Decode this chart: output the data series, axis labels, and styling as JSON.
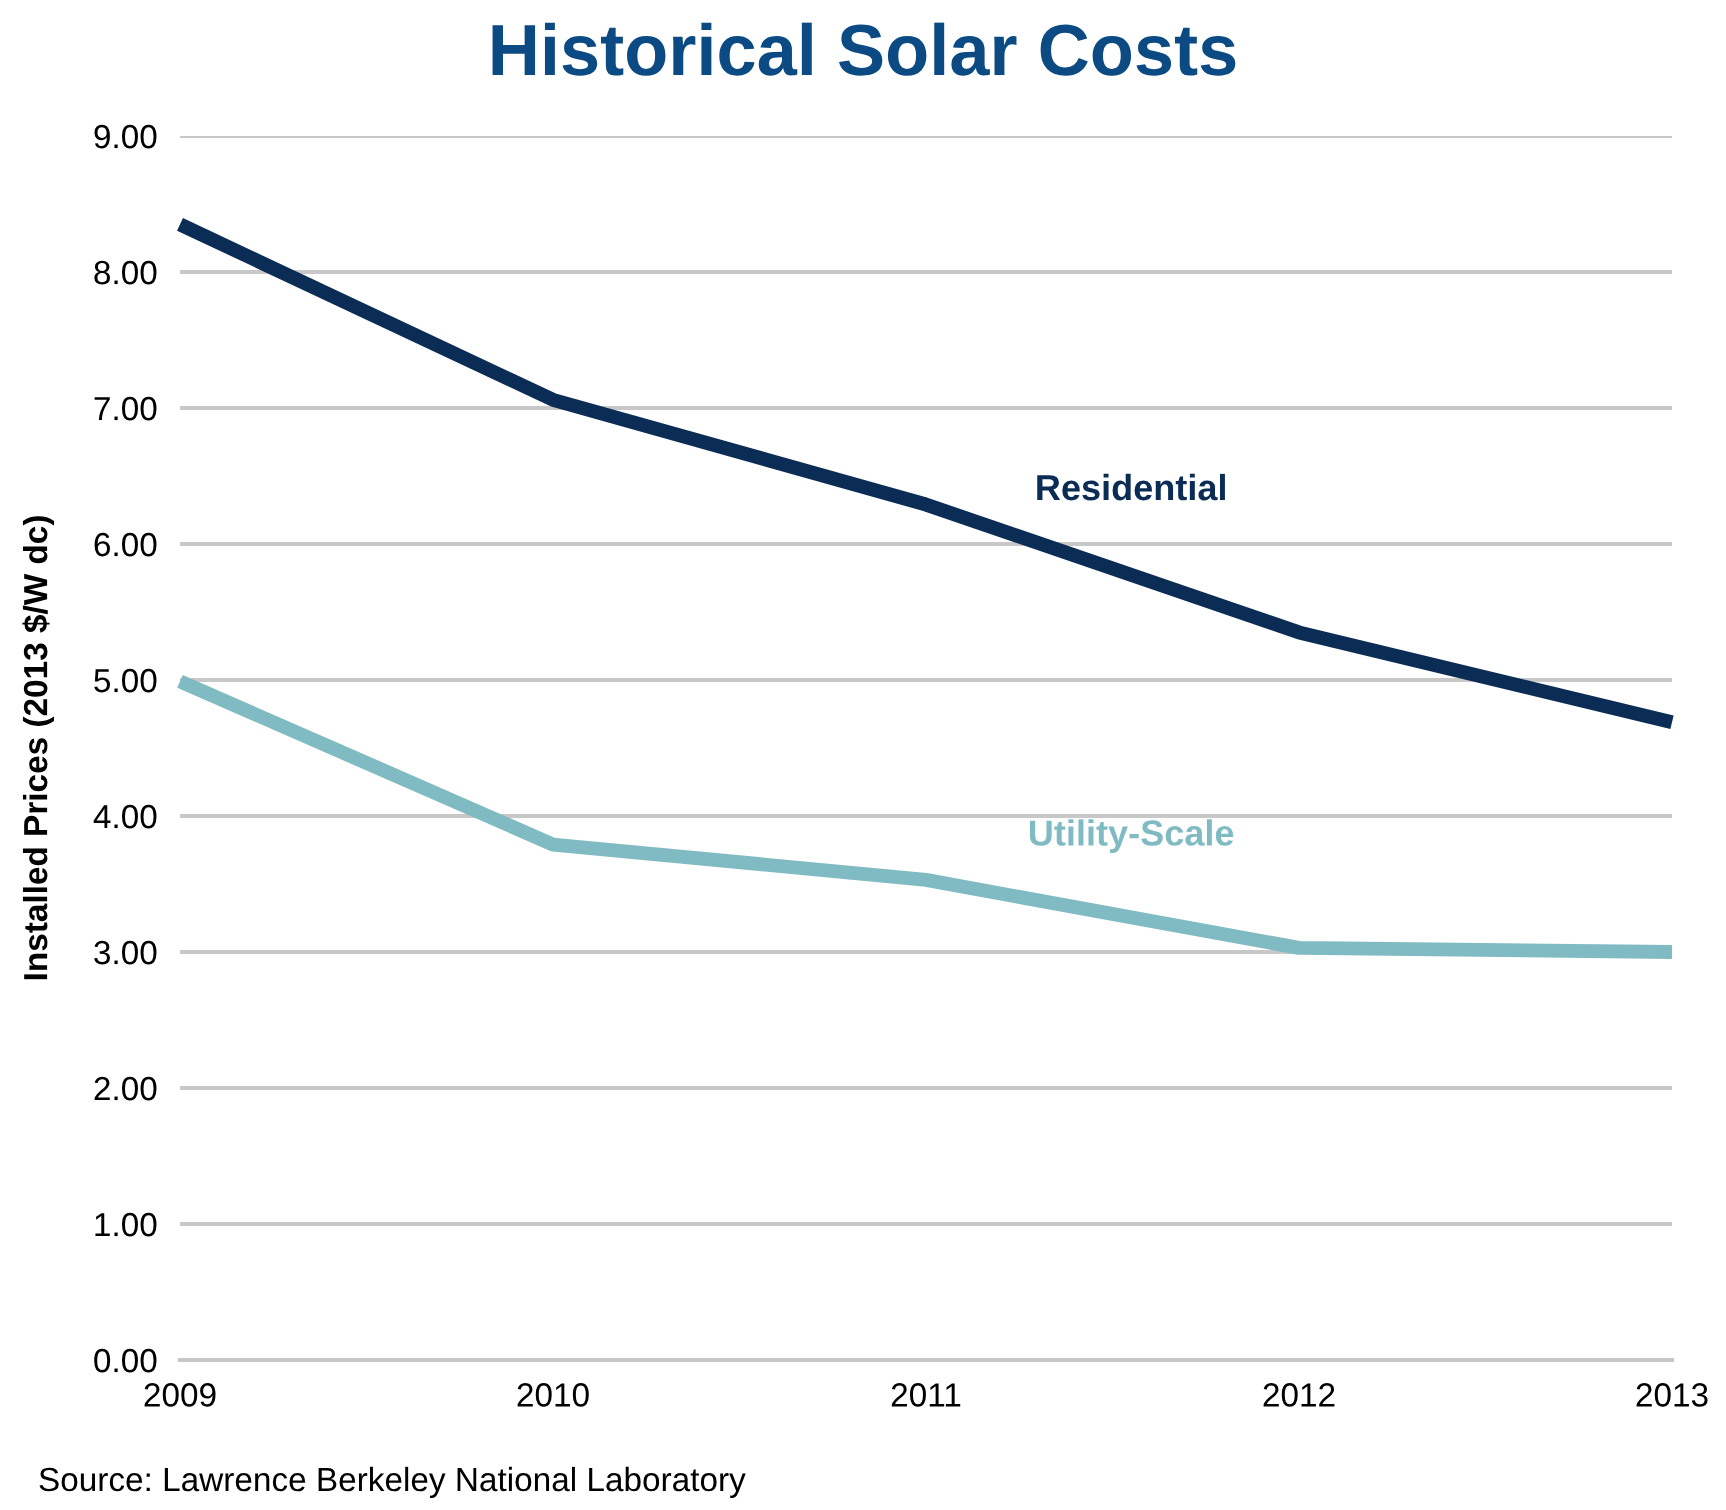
{
  "chart_data": {
    "type": "line",
    "title": "Historical Solar Costs",
    "ylabel": "Installed Prices (2013 $/W dc)",
    "x": [
      2009,
      2010,
      2011,
      2012,
      2013
    ],
    "series": [
      {
        "name": "Residential",
        "color": "#0b2d55",
        "values": [
          8.35,
          7.06,
          6.29,
          5.35,
          4.69
        ]
      },
      {
        "name": "Utility-Scale",
        "color": "#80bbc3",
        "values": [
          4.99,
          3.79,
          3.53,
          3.03,
          3.0
        ]
      }
    ],
    "xlim": [
      2009,
      2013
    ],
    "xticks": [
      2009,
      2010,
      2011,
      2012,
      2013
    ],
    "ylim": [
      0,
      9
    ],
    "yticks": [
      {
        "value": 0,
        "label": "0.00"
      },
      {
        "value": 1,
        "label": "1.00"
      },
      {
        "value": 2,
        "label": "2.00"
      },
      {
        "value": 3,
        "label": "3.00"
      },
      {
        "value": 4,
        "label": "4.00"
      },
      {
        "value": 5,
        "label": "5.00"
      },
      {
        "value": 6,
        "label": "6.00"
      },
      {
        "value": 7,
        "label": "7.00"
      },
      {
        "value": 8,
        "label": "8.00"
      },
      {
        "value": 9,
        "label": "9.00"
      }
    ],
    "grid": "y",
    "legend": false,
    "marker": "none",
    "line_style": "solid",
    "annotations": [
      "Source: Lawrence Berkeley National Laboratory"
    ]
  }
}
